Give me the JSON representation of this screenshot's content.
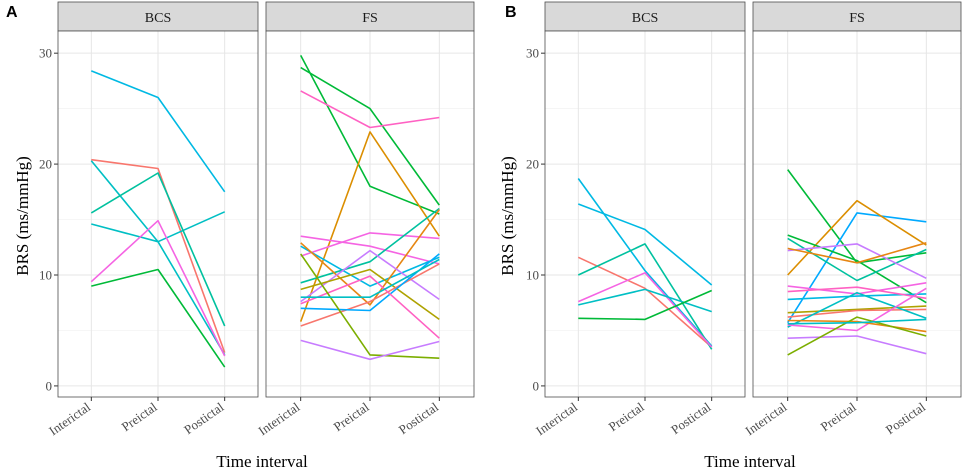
{
  "figure": {
    "panels": [
      {
        "label": "A"
      },
      {
        "label": "B"
      }
    ]
  },
  "chart_data": [
    {
      "type": "line",
      "panel": "A",
      "xlabel": "Time interval",
      "ylabel": "BRS (ms/mmHg)",
      "ylim": [
        -1,
        32
      ],
      "yticks": [
        0,
        10,
        20,
        30
      ],
      "categories": [
        "Interictal",
        "Preictal",
        "Postictal"
      ],
      "facets": [
        {
          "name": "BCS",
          "series": [
            {
              "color": "#F8766D",
              "values": [
                20.4,
                19.6,
                3.0
              ]
            },
            {
              "color": "#00BFC4",
              "values": [
                14.6,
                13.0,
                15.7
              ]
            },
            {
              "color": "#00B9E3",
              "values": [
                28.4,
                26.0,
                17.5
              ]
            },
            {
              "color": "#00BFC4",
              "values": [
                20.3,
                13.0,
                2.8
              ]
            },
            {
              "color": "#00BA38",
              "values": [
                9.0,
                10.5,
                1.7
              ]
            },
            {
              "color": "#00C19F",
              "values": [
                15.6,
                19.2,
                5.4
              ]
            },
            {
              "color": "#F564E3",
              "values": [
                9.4,
                14.9,
                2.7
              ]
            }
          ]
        },
        {
          "name": "FS",
          "series": [
            {
              "color": "#00BA38",
              "values": [
                29.8,
                18.0,
                15.5
              ]
            },
            {
              "color": "#00BA38",
              "values": [
                28.7,
                25.0,
                16.3
              ]
            },
            {
              "color": "#FF61C3",
              "values": [
                26.6,
                23.3,
                24.2
              ]
            },
            {
              "color": "#DB8E00",
              "values": [
                5.8,
                22.9,
                13.5
              ]
            },
            {
              "color": "#F564E3",
              "values": [
                13.5,
                12.6,
                11.0
              ]
            },
            {
              "color": "#F564E3",
              "values": [
                11.7,
                13.8,
                13.3
              ]
            },
            {
              "color": "#00B9E3",
              "values": [
                12.6,
                9.0,
                11.6
              ]
            },
            {
              "color": "#00C19F",
              "values": [
                9.3,
                11.2,
                16.0
              ]
            },
            {
              "color": "#E68613",
              "values": [
                12.9,
                7.3,
                15.9
              ]
            },
            {
              "color": "#C77CFF",
              "values": [
                7.6,
                12.2,
                7.8
              ]
            },
            {
              "color": "#AEA200",
              "values": [
                8.7,
                10.5,
                6.0
              ]
            },
            {
              "color": "#F8766D",
              "values": [
                5.4,
                7.6,
                11.0
              ]
            },
            {
              "color": "#00A9FF",
              "values": [
                7.0,
                6.8,
                11.9
              ]
            },
            {
              "color": "#FF61C3",
              "values": [
                7.4,
                9.9,
                4.3
              ]
            },
            {
              "color": "#7CAE00",
              "values": [
                11.9,
                2.8,
                2.5
              ]
            },
            {
              "color": "#C77CFF",
              "values": [
                4.1,
                2.4,
                4.0
              ]
            },
            {
              "color": "#00BFC4",
              "values": [
                8.0,
                8.0,
                11.4
              ]
            }
          ]
        }
      ]
    },
    {
      "type": "line",
      "panel": "B",
      "xlabel": "Time interval",
      "ylabel": "BRS (ms/mmHg)",
      "ylim": [
        -1,
        32
      ],
      "yticks": [
        0,
        10,
        20,
        30
      ],
      "categories": [
        "Interictal",
        "Preictal",
        "Postictal"
      ],
      "facets": [
        {
          "name": "BCS",
          "series": [
            {
              "color": "#00B9E3",
              "values": [
                18.7,
                10.4,
                3.6
              ]
            },
            {
              "color": "#00B9E3",
              "values": [
                16.4,
                14.1,
                9.1
              ]
            },
            {
              "color": "#F8766D",
              "values": [
                11.6,
                8.8,
                3.5
              ]
            },
            {
              "color": "#00C19F",
              "values": [
                10.0,
                12.8,
                3.3
              ]
            },
            {
              "color": "#F564E3",
              "values": [
                7.6,
                10.2,
                3.5
              ]
            },
            {
              "color": "#00BFC4",
              "values": [
                7.3,
                8.7,
                6.7
              ]
            },
            {
              "color": "#00BA38",
              "values": [
                6.1,
                6.0,
                8.6
              ]
            }
          ]
        },
        {
          "name": "FS",
          "series": [
            {
              "color": "#00BA38",
              "values": [
                19.5,
                11.1,
                12.0
              ]
            },
            {
              "color": "#00A9FF",
              "values": [
                5.7,
                15.6,
                14.8
              ]
            },
            {
              "color": "#DB8E00",
              "values": [
                10.0,
                16.7,
                12.7
              ]
            },
            {
              "color": "#00BA38",
              "values": [
                13.6,
                11.3,
                7.5
              ]
            },
            {
              "color": "#00C19F",
              "values": [
                13.3,
                9.5,
                12.3
              ]
            },
            {
              "color": "#C77CFF",
              "values": [
                12.2,
                12.8,
                9.7
              ]
            },
            {
              "color": "#E68613",
              "values": [
                12.4,
                11.1,
                12.9
              ]
            },
            {
              "color": "#00B9E3",
              "values": [
                7.8,
                8.1,
                8.3
              ]
            },
            {
              "color": "#F564E3",
              "values": [
                9.0,
                8.3,
                9.3
              ]
            },
            {
              "color": "#FF61C3",
              "values": [
                8.5,
                8.9,
                7.9
              ]
            },
            {
              "color": "#AEA200",
              "values": [
                6.6,
                6.9,
                7.2
              ]
            },
            {
              "color": "#F8766D",
              "values": [
                6.2,
                6.8,
                6.9
              ]
            },
            {
              "color": "#00BFC4",
              "values": [
                5.3,
                8.4,
                6.1
              ]
            },
            {
              "color": "#F564E3",
              "values": [
                5.5,
                5.0,
                8.8
              ]
            },
            {
              "color": "#E68613",
              "values": [
                5.9,
                5.8,
                4.9
              ]
            },
            {
              "color": "#C77CFF",
              "values": [
                4.3,
                4.5,
                2.9
              ]
            },
            {
              "color": "#7CAE00",
              "values": [
                2.8,
                6.2,
                4.5
              ]
            },
            {
              "color": "#00BFC4",
              "values": [
                5.6,
                5.7,
                6.0
              ]
            }
          ]
        }
      ]
    }
  ]
}
